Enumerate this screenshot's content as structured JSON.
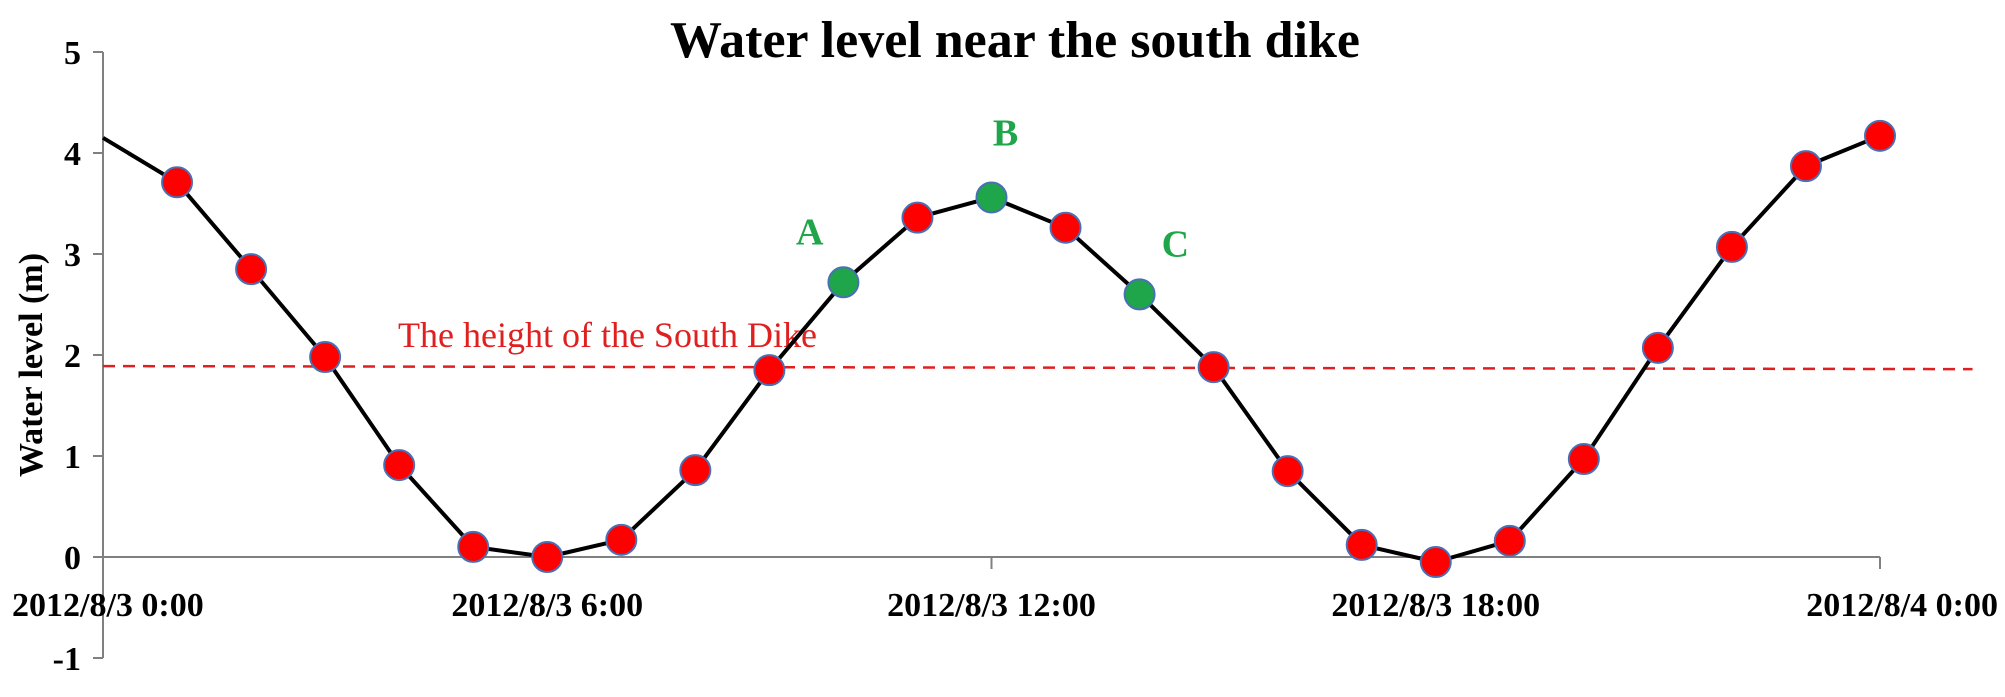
{
  "chart_data": {
    "type": "line",
    "title": "Water level near the south dike",
    "ylabel": "Water level (m)",
    "xlabel": "",
    "ylim": [
      -1,
      5
    ],
    "yticks": [
      -1,
      0,
      1,
      2,
      3,
      4,
      5
    ],
    "xlim_hours": [
      0,
      24
    ],
    "xtick_labels": [
      "2012/8/3 0:00",
      "2012/8/3 6:00",
      "2012/8/3 12:00",
      "2012/8/3 18:00",
      "2012/8/4 0:00"
    ],
    "grid": false,
    "line_color": "#000000",
    "marker_color": "#ff0000",
    "highlight_color": "#1fa64a",
    "dike_color": "#e02020",
    "line_start": {
      "x": 0,
      "y": 4.15
    },
    "points": [
      {
        "x": 1,
        "y": 3.71
      },
      {
        "x": 2,
        "y": 2.85
      },
      {
        "x": 3,
        "y": 1.98
      },
      {
        "x": 4,
        "y": 0.91
      },
      {
        "x": 5,
        "y": 0.1
      },
      {
        "x": 6,
        "y": 0.0
      },
      {
        "x": 7,
        "y": 0.17
      },
      {
        "x": 8,
        "y": 0.86
      },
      {
        "x": 9,
        "y": 1.85
      },
      {
        "x": 10,
        "y": 2.72,
        "label": "A",
        "highlight": true
      },
      {
        "x": 11,
        "y": 3.36
      },
      {
        "x": 12,
        "y": 3.56,
        "label": "B",
        "highlight": true
      },
      {
        "x": 13,
        "y": 3.26
      },
      {
        "x": 14,
        "y": 2.6,
        "label": "C",
        "highlight": true
      },
      {
        "x": 15,
        "y": 1.88
      },
      {
        "x": 16,
        "y": 0.85
      },
      {
        "x": 17,
        "y": 0.12
      },
      {
        "x": 18,
        "y": -0.05
      },
      {
        "x": 19,
        "y": 0.16
      },
      {
        "x": 20,
        "y": 0.97
      },
      {
        "x": 21,
        "y": 2.07
      },
      {
        "x": 22,
        "y": 3.07
      },
      {
        "x": 23,
        "y": 3.87
      },
      {
        "x": 24,
        "y": 4.17
      }
    ],
    "dike": {
      "label": "The height of the South Dike",
      "y_start": 1.89,
      "y_end": 1.86,
      "x_end": 25.25
    }
  }
}
